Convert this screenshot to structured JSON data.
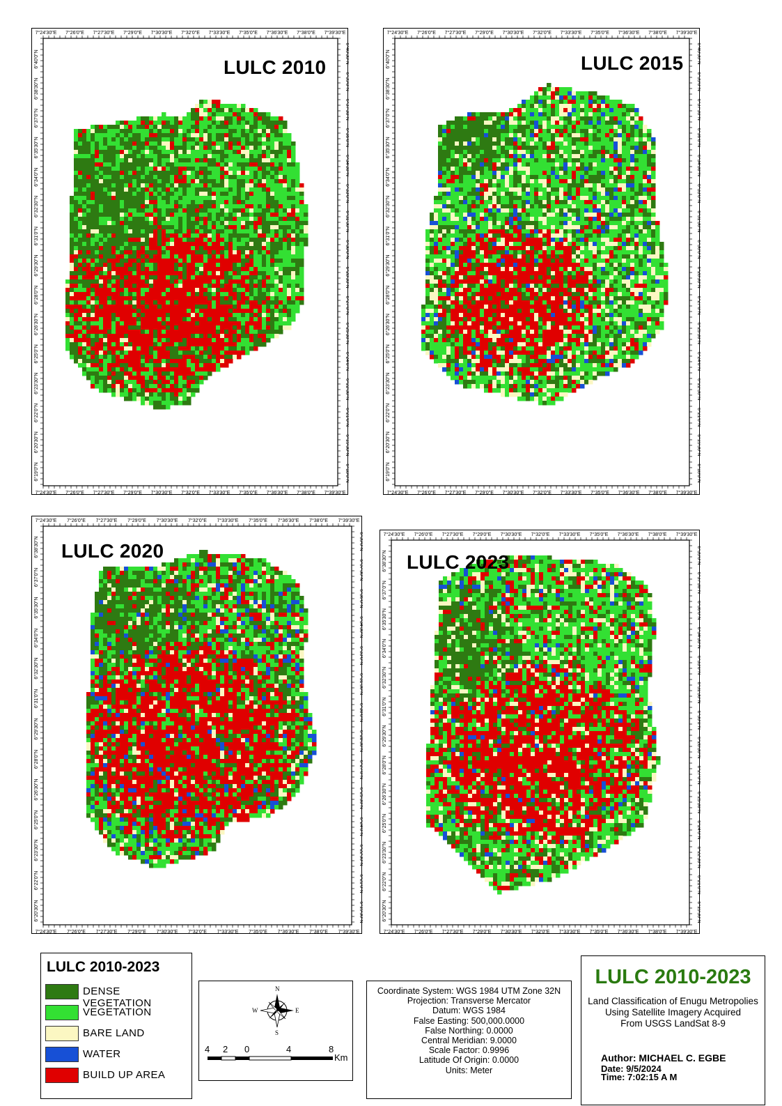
{
  "maps": [
    {
      "id": "m2010",
      "title": "LULC 2010",
      "x_ticks": [
        "7°24'30\"E",
        "7°26'0\"E",
        "7°27'30\"E",
        "7°29'0\"E",
        "7°30'30\"E",
        "7°32'0\"E",
        "7°33'30\"E",
        "7°35'0\"E",
        "7°36'30\"E",
        "7°38'0\"E",
        "7°39'30\"E"
      ],
      "y_ticks": [
        "6°40'0\"N",
        "6°38'30\"N",
        "6°37'0\"N",
        "6°35'30\"N",
        "6°34'0\"N",
        "6°32'30\"N",
        "6°31'0\"N",
        "6°29'30\"N",
        "6°28'0\"N",
        "6°26'30\"N",
        "6°25'0\"N",
        "6°23'30\"N",
        "6°22'0\"N",
        "6°20'30\"N",
        "6°19'0\"N"
      ],
      "y_ticks_right": [
        "6°40'30\"N",
        "6°39'0\"N",
        "6°37'30\"N",
        "6°36'0\"N",
        "6°34'30\"N",
        "6°33'0\"N",
        "6°31'30\"N",
        "6°30'0\"N",
        "6°28'30\"N",
        "6°27'0\"N",
        "6°25'30\"N",
        "6°24'0\"N",
        "6°22'30\"N",
        "6°21'0\"N",
        "6°19'30\"N",
        "6°18'0\"N"
      ],
      "class_mix": [
        0.3,
        0.38,
        0.06,
        0.0,
        0.26
      ]
    },
    {
      "id": "m2015",
      "title": "LULC 2015",
      "x_ticks": [
        "7°24'30\"E",
        "7°26'0\"E",
        "7°27'30\"E",
        "7°29'0\"E",
        "7°30'30\"E",
        "7°32'0\"E",
        "7°33'30\"E",
        "7°35'0\"E",
        "7°36'30\"E",
        "7°38'0\"E",
        "7°39'30\"E"
      ],
      "y_ticks": [
        "6°40'0\"N",
        "6°38'30\"N",
        "6°37'0\"N",
        "6°35'30\"N",
        "6°34'0\"N",
        "6°32'30\"N",
        "6°31'0\"N",
        "6°29'30\"N",
        "6°28'0\"N",
        "6°26'30\"N",
        "6°25'0\"N",
        "6°23'30\"N",
        "6°22'0\"N",
        "6°20'30\"N",
        "6°19'0\"N"
      ],
      "y_ticks_right": [
        "6°40'30\"N",
        "6°39'0\"N",
        "6°37'30\"N",
        "6°36'0\"N",
        "6°34'30\"N",
        "6°33'0\"N",
        "6°31'30\"N",
        "6°30'0\"N",
        "6°28'30\"N",
        "6°27'0\"N",
        "6°25'30\"N",
        "6°24'0\"N",
        "6°22'30\"N",
        "6°21'0\"N",
        "6°19'30\"N",
        "6°18'0\"N"
      ],
      "class_mix": [
        0.2,
        0.38,
        0.16,
        0.06,
        0.2
      ]
    },
    {
      "id": "m2020",
      "title": "LULC 2020",
      "x_ticks": [
        "7°24'30\"E",
        "7°26'0\"E",
        "7°27'30\"E",
        "7°29'0\"E",
        "7°30'30\"E",
        "7°32'0\"E",
        "7°33'30\"E",
        "7°35'0\"E",
        "7°36'30\"E",
        "7°38'0\"E",
        "7°39'30\"E"
      ],
      "y_ticks": [
        "6°38'30\"N",
        "6°37'0\"N",
        "6°35'30\"N",
        "6°34'0\"N",
        "6°32'30\"N",
        "6°31'0\"N",
        "6°29'30\"N",
        "6°28'0\"N",
        "6°26'30\"N",
        "6°25'0\"N",
        "6°23'30\"N",
        "6°22'0\"N",
        "6°20'30\"N"
      ],
      "y_ticks_right": [
        "6°39'0\"N",
        "6°37'30\"N",
        "6°36'0\"N",
        "6°34'30\"N",
        "6°33'0\"N",
        "6°31'30\"N",
        "6°30'0\"N",
        "6°28'30\"N",
        "6°27'0\"N",
        "6°25'30\"N",
        "6°24'0\"N",
        "6°22'30\"N",
        "6°21'0\"N",
        "6°19'30\"N"
      ],
      "class_mix": [
        0.24,
        0.3,
        0.08,
        0.06,
        0.32
      ]
    },
    {
      "id": "m2023",
      "title": "LULC 2023",
      "x_ticks": [
        "7°24'30\"E",
        "7°26'0\"E",
        "7°27'30\"E",
        "7°29'0\"E",
        "7°30'30\"E",
        "7°32'0\"E",
        "7°33'30\"E",
        "7°35'0\"E",
        "7°36'30\"E",
        "7°38'0\"E",
        "7°39'30\"E"
      ],
      "y_ticks": [
        "6°38'30\"N",
        "6°37'0\"N",
        "6°35'30\"N",
        "6°34'0\"N",
        "6°32'30\"N",
        "6°31'0\"N",
        "6°29'30\"N",
        "6°28'0\"N",
        "6°26'30\"N",
        "6°25'0\"N",
        "6°23'30\"N",
        "6°22'0\"N",
        "6°20'30\"N"
      ],
      "y_ticks_right": [
        "6°39'0\"N",
        "6°37'30\"N",
        "6°36'0\"N",
        "6°34'30\"N",
        "6°33'0\"N",
        "6°31'30\"N",
        "6°30'0\"N",
        "6°28'30\"N",
        "6°27'0\"N",
        "6°25'30\"N",
        "6°24'0\"N",
        "6°22'30\"N",
        "6°21'0\"N",
        "6°19'30\"N"
      ],
      "class_mix": [
        0.16,
        0.38,
        0.12,
        0.04,
        0.3
      ]
    }
  ],
  "legend": {
    "title": "LULC 2010-2023",
    "items": [
      {
        "label": "DENSE VEGETATION",
        "color": "#2e7a12"
      },
      {
        "label": "VEGETATION",
        "color": "#33e033"
      },
      {
        "label": "BARE LAND",
        "color": "#fbf7c2"
      },
      {
        "label": "WATER",
        "color": "#1750d6"
      },
      {
        "label": "BUILD UP AREA",
        "color": "#e00000"
      }
    ]
  },
  "north_arrow": {
    "n": "N",
    "s": "S",
    "e": "E",
    "w": "W"
  },
  "scale_bar": {
    "labels": [
      "4",
      "2",
      "0",
      "4",
      "8"
    ],
    "unit": "Km"
  },
  "coordinate_info": {
    "lines": [
      "Coordinate System: WGS 1984 UTM Zone 32N",
      "Projection: Transverse Mercator",
      "Datum: WGS 1984",
      "False Easting: 500,000.0000",
      "False Northing: 0.0000",
      "Central Meridian: 9.0000",
      "Scale Factor: 0.9996",
      "Latitude Of Origin: 0.0000",
      "Units: Meter"
    ]
  },
  "title_block": {
    "title": "LULC 2010-2023",
    "subtitle_lines": [
      "Land Classification of Enugu Metropolies",
      "Using Satellite Imagery Acquired",
      "From USGS LandSat 8-9"
    ],
    "author": "Author: MICHAEL C. EGBE",
    "date": "Date: 9/5/2024",
    "time": "Time: 7:02:15 A M"
  },
  "colors": {
    "dense_vegetation": "#2e7a12",
    "vegetation": "#33e033",
    "bare_land": "#fbf7c2",
    "water": "#1750d6",
    "build_up": "#e00000",
    "title_green": "#2a7a10"
  }
}
